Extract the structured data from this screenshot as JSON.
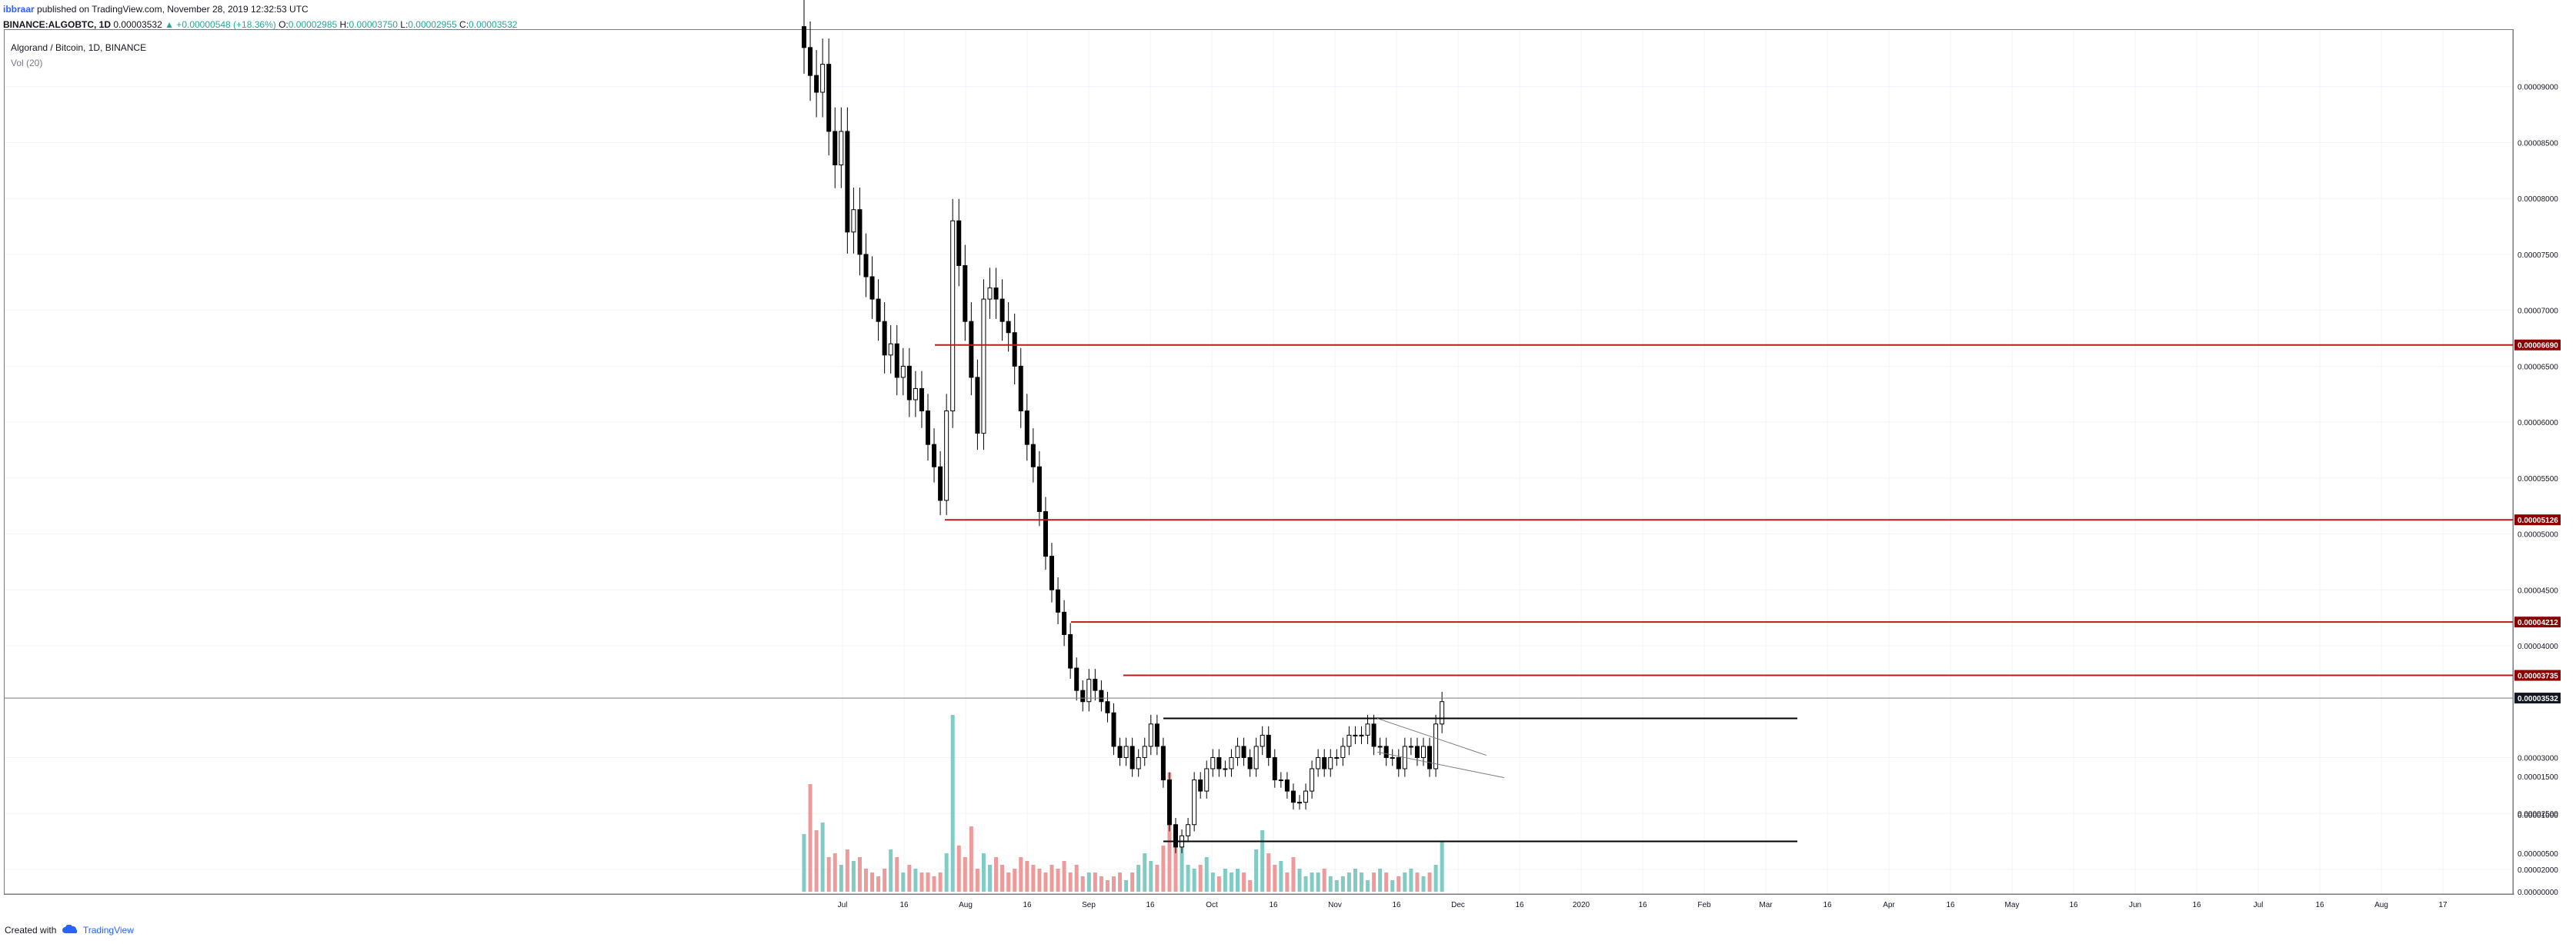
{
  "header": {
    "author": "ibbraar",
    "published": "published on TradingView.com, November 28, 2019 12:32:53 UTC",
    "symbol": "BINANCE:ALGOBTC, 1D",
    "last": "0.00003532",
    "change": "▲ +0.00000548 (+18.36%)",
    "o_label": "O:",
    "o": "0.00002985",
    "h_label": "H:",
    "h": "0.00003750",
    "l_label": "L:",
    "l": "0.00002955",
    "c_label": "C:",
    "c": "0.00003532"
  },
  "legend": {
    "title": "Algorand / Bitcoin, 1D, BINANCE",
    "volume": "Vol (20)"
  },
  "footer": {
    "created_with": "Created with",
    "brand": "TradingView"
  },
  "colors": {
    "up_candle": "#ffffff",
    "down_candle": "#000000",
    "vol_up": "#80cbc4",
    "vol_down": "#ef9a9a",
    "resistance": "#b71c1c",
    "price_label_bg": "#8b0000",
    "last_price_bg": "#131722",
    "grid": "#f0f3fa"
  },
  "chart_data": {
    "type": "candlestick",
    "symbol": "ALGOBTC",
    "interval": "1D",
    "ylim": [
      1.8e-05,
      9.5e-05
    ],
    "y_ticks": [
      "0.00009000",
      "0.00008500",
      "0.00008000",
      "0.00007500",
      "0.00007000",
      "0.00006500",
      "0.00006000",
      "0.00005500",
      "0.00005000",
      "0.00004500",
      "0.00004000",
      "0.00003000",
      "0.00002500",
      "0.00002000"
    ],
    "x_ticks": [
      "Jul",
      "16",
      "Aug",
      "16",
      "Sep",
      "16",
      "Oct",
      "16",
      "Nov",
      "16",
      "Dec",
      "16",
      "2020",
      "16",
      "Feb",
      "Mar",
      "16",
      "Apr",
      "16",
      "May",
      "16",
      "Jun",
      "16",
      "Jul",
      "16",
      "Aug",
      "17"
    ],
    "price_levels": [
      {
        "label": "0.00006690",
        "value": 6.69e-05
      },
      {
        "label": "0.00005126",
        "value": 5.126e-05
      },
      {
        "label": "0.00004212",
        "value": 4.212e-05
      },
      {
        "label": "0.00003735",
        "value": 3.735e-05
      }
    ],
    "last_price": {
      "label": "0.00003532",
      "value": 3.532e-05
    },
    "range_box": {
      "top": 3.35e-05,
      "bottom": 2.25e-05
    },
    "volume_ticks": [
      "0.00001500",
      "0.00001000",
      "0.00000500",
      "0.00000000"
    ],
    "volume_max": 1.8e-05,
    "closes": [
      9.35e-05,
      9.1e-05,
      8.95e-05,
      9.2e-05,
      8.6e-05,
      8.3e-05,
      8.6e-05,
      7.7e-05,
      7.9e-05,
      7.5e-05,
      7.3e-05,
      7.1e-05,
      6.9e-05,
      6.6e-05,
      6.7e-05,
      6.4e-05,
      6.5e-05,
      6.2e-05,
      6.3e-05,
      6.1e-05,
      5.8e-05,
      5.6e-05,
      5.3e-05,
      6.1e-05,
      7.8e-05,
      7.4e-05,
      6.9e-05,
      6.4e-05,
      5.9e-05,
      7.1e-05,
      7.2e-05,
      7.1e-05,
      6.9e-05,
      6.8e-05,
      6.5e-05,
      6.1e-05,
      5.8e-05,
      5.6e-05,
      5.2e-05,
      4.8e-05,
      4.5e-05,
      4.3e-05,
      4.1e-05,
      3.8e-05,
      3.6e-05,
      3.5e-05,
      3.7e-05,
      3.6e-05,
      3.5e-05,
      3.4e-05,
      3.1e-05,
      3e-05,
      3.1e-05,
      2.9e-05,
      3e-05,
      3.1e-05,
      3.3e-05,
      3.1e-05,
      2.8e-05,
      2.4e-05,
      2.2e-05,
      2.3e-05,
      2.4e-05,
      2.8e-05,
      2.7e-05,
      2.9e-05,
      3e-05,
      2.9e-05,
      2.9e-05,
      3e-05,
      3.1e-05,
      3e-05,
      2.9e-05,
      3.1e-05,
      3.2e-05,
      3e-05,
      2.8e-05,
      2.8e-05,
      2.7e-05,
      2.6e-05,
      2.6e-05,
      2.7e-05,
      2.9e-05,
      3e-05,
      2.9e-05,
      3e-05,
      3e-05,
      3.1e-05,
      3.2e-05,
      3.2e-05,
      3.2e-05,
      3.3e-05,
      3.1e-05,
      3.1e-05,
      3e-05,
      3e-05,
      2.9e-05,
      3.1e-05,
      3.1e-05,
      3e-05,
      3.1e-05,
      2.9e-05,
      3.3e-05,
      3.5e-05
    ],
    "volumes": [
      7.5e-06,
      1.4e-05,
      8e-06,
      9e-06,
      4.5e-06,
      5e-06,
      3.5e-06,
      5.5e-06,
      4e-06,
      4.5e-06,
      3e-06,
      2.5e-06,
      2e-06,
      3e-06,
      5.5e-06,
      4.5e-06,
      2.5e-06,
      3.5e-06,
      3e-06,
      2.5e-06,
      2.5e-06,
      2e-06,
      2.5e-06,
      5e-06,
      2.3e-05,
      6e-06,
      4.5e-06,
      8.5e-06,
      3e-06,
      5e-06,
      3.5e-06,
      4.5e-06,
      3.5e-06,
      2.5e-06,
      3e-06,
      4.5e-06,
      4e-06,
      3.5e-06,
      3e-06,
      2.5e-06,
      3.5e-06,
      3e-06,
      4e-06,
      2.5e-06,
      3.5e-06,
      2e-06,
      2.5e-06,
      2.5e-06,
      2e-06,
      1.5e-06,
      2e-06,
      2.5e-06,
      1.5e-06,
      2.5e-06,
      3.5e-06,
      5e-06,
      4e-06,
      3.5e-06,
      6e-06,
      1.55e-05,
      8.5e-06,
      6.5e-06,
      3.5e-06,
      3e-06,
      3.5e-06,
      4.5e-06,
      2.5e-06,
      2e-06,
      3e-06,
      2.5e-06,
      3e-06,
      2.5e-06,
      1.5e-06,
      5.5e-06,
      8e-06,
      5e-06,
      3.5e-06,
      4e-06,
      2.5e-06,
      4.5e-06,
      3e-06,
      2e-06,
      2.5e-06,
      2.5e-06,
      3e-06,
      2e-06,
      1.5e-06,
      2e-06,
      2.5e-06,
      3e-06,
      2.5e-06,
      1.5e-06,
      2.5e-06,
      3e-06,
      2.5e-06,
      1.5e-06,
      2e-06,
      2.5e-06,
      3e-06,
      2.5e-06,
      2e-06,
      2.5e-06,
      3.5e-06,
      6.5e-06
    ]
  }
}
